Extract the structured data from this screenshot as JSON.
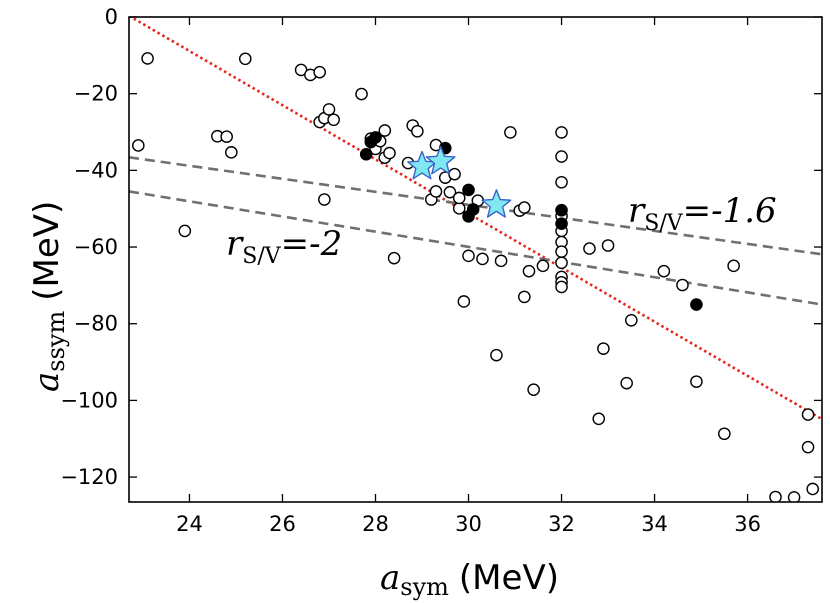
{
  "chart_data": {
    "type": "scatter",
    "title": "",
    "xlabel": {
      "var": "a",
      "sub": "sym",
      "unit": "(MeV)"
    },
    "ylabel": {
      "var": "a",
      "sub": "ssym",
      "unit": "(MeV)"
    },
    "xlim": [
      22.7,
      37.6
    ],
    "ylim": [
      -126.5,
      0
    ],
    "xticks": [
      24,
      26,
      28,
      30,
      32,
      34,
      36
    ],
    "yticks": [
      0,
      -20,
      -40,
      -60,
      -80,
      -100,
      -120
    ],
    "grid": false,
    "series": [
      {
        "name": "open circles",
        "marker": "open-circle",
        "color": "#000000",
        "points": [
          [
            23.1,
            -10.8
          ],
          [
            22.9,
            -33.5
          ],
          [
            23.9,
            -55.8
          ],
          [
            24.6,
            -31.1
          ],
          [
            24.8,
            -31.2
          ],
          [
            24.9,
            -35.3
          ],
          [
            25.2,
            -10.9
          ],
          [
            26.4,
            -13.8
          ],
          [
            26.6,
            -15.1
          ],
          [
            26.8,
            -14.4
          ],
          [
            26.8,
            -27.4
          ],
          [
            26.9,
            -26.4
          ],
          [
            26.9,
            -47.6
          ],
          [
            27.0,
            -24.1
          ],
          [
            27.1,
            -26.8
          ],
          [
            27.7,
            -20.1
          ],
          [
            27.9,
            -31.7
          ],
          [
            28.0,
            -34.4
          ],
          [
            28.1,
            -32.4
          ],
          [
            28.2,
            -29.6
          ],
          [
            28.2,
            -36.7
          ],
          [
            28.3,
            -35.5
          ],
          [
            28.4,
            -62.9
          ],
          [
            28.7,
            -38.1
          ],
          [
            28.8,
            -28.3
          ],
          [
            28.9,
            -29.8
          ],
          [
            29.2,
            -47.6
          ],
          [
            29.3,
            -33.4
          ],
          [
            29.3,
            -45.5
          ],
          [
            29.5,
            -41.9
          ],
          [
            29.6,
            -45.7
          ],
          [
            29.7,
            -41.0
          ],
          [
            29.8,
            -49.9
          ],
          [
            29.8,
            -47.2
          ],
          [
            29.9,
            -74.2
          ],
          [
            30.0,
            -62.3
          ],
          [
            30.2,
            -47.9
          ],
          [
            30.3,
            -63.1
          ],
          [
            30.6,
            -88.2
          ],
          [
            30.7,
            -63.6
          ],
          [
            30.9,
            -30.1
          ],
          [
            31.1,
            -50.5
          ],
          [
            31.2,
            -49.7
          ],
          [
            31.2,
            -73.0
          ],
          [
            31.3,
            -66.3
          ],
          [
            31.4,
            -97.2
          ],
          [
            31.6,
            -64.9
          ],
          [
            32.0,
            -30.1
          ],
          [
            32.0,
            -36.4
          ],
          [
            32.0,
            -43.1
          ],
          [
            32.0,
            -51.9
          ],
          [
            32.0,
            -55.8
          ],
          [
            32.0,
            -58.7
          ],
          [
            32.0,
            -61.2
          ],
          [
            32.0,
            -64.1
          ],
          [
            32.0,
            -67.8
          ],
          [
            32.0,
            -69.2
          ],
          [
            32.0,
            -70.4
          ],
          [
            32.6,
            -60.4
          ],
          [
            32.8,
            -104.8
          ],
          [
            32.9,
            -86.5
          ],
          [
            33.0,
            -59.6
          ],
          [
            33.4,
            -95.5
          ],
          [
            33.5,
            -79.1
          ],
          [
            34.2,
            -66.3
          ],
          [
            34.6,
            -69.9
          ],
          [
            34.9,
            -95.1
          ],
          [
            35.5,
            -108.7
          ],
          [
            35.7,
            -64.9
          ],
          [
            36.6,
            -125.2
          ],
          [
            37.0,
            -125.3
          ],
          [
            37.3,
            -103.7
          ],
          [
            37.3,
            -112.2
          ],
          [
            37.4,
            -123.1
          ]
        ]
      },
      {
        "name": "filled circles",
        "marker": "filled-circle",
        "color": "#000000",
        "points": [
          [
            27.8,
            -35.8
          ],
          [
            27.9,
            -32.6
          ],
          [
            28.0,
            -31.4
          ],
          [
            29.5,
            -34.2
          ],
          [
            30.0,
            -45.1
          ],
          [
            30.0,
            -52.0
          ],
          [
            30.1,
            -50.2
          ],
          [
            32.0,
            -50.4
          ],
          [
            32.0,
            -53.9
          ],
          [
            34.9,
            -75.0
          ]
        ]
      },
      {
        "name": "stars",
        "marker": "star",
        "color": "#7fe8f0",
        "edge": "#3a63c8",
        "points": [
          [
            29.0,
            -39.0
          ],
          [
            29.4,
            -37.7
          ],
          [
            30.6,
            -49.0
          ]
        ]
      }
    ],
    "lines": [
      {
        "name": "red fit",
        "style": "dotted",
        "color": "#e8251c",
        "from": [
          22.7,
          0.3
        ],
        "to": [
          37.6,
          -104.9
        ]
      },
      {
        "name": "r_S/V=-1.6",
        "style": "dashed",
        "color": "#707070",
        "from": [
          22.7,
          -36.6
        ],
        "to": [
          37.6,
          -61.9
        ]
      },
      {
        "name": "r_S/V=-2",
        "style": "dashed",
        "color": "#707070",
        "from": [
          22.7,
          -45.5
        ],
        "to": [
          37.6,
          -75.0
        ]
      }
    ],
    "annotations": [
      {
        "text_var": "r",
        "text_sub": "S/V",
        "text_value": "=-1.6",
        "x": 34.4,
        "y": -53.5
      },
      {
        "text_var": "r",
        "text_sub": "S/V",
        "text_value": "=-2",
        "x": 24.7,
        "y": -64.8
      }
    ]
  }
}
